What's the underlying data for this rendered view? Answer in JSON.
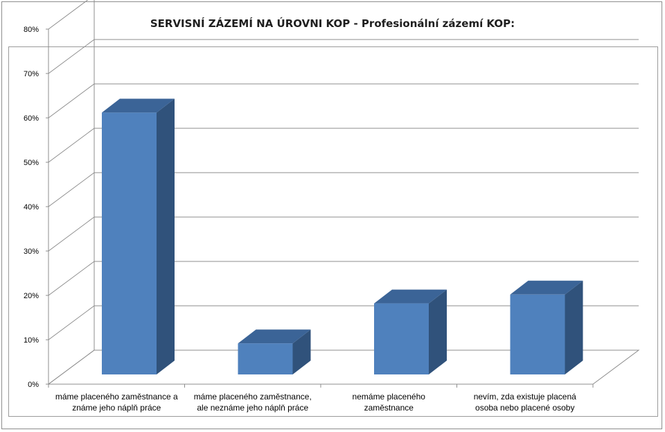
{
  "chart_data": {
    "type": "bar",
    "title": "SERVISNÍ ZÁZEMÍ NA ÚROVNI KOP - Profesionální zázemí KOP:",
    "categories": [
      [
        "máme placeného zaměstnance a",
        "známe jeho náplň práce"
      ],
      [
        "máme placeného zaměstnance,",
        "ale neznáme jeho náplň práce"
      ],
      [
        "nemáme placeného",
        "zaměstnance"
      ],
      [
        "nevím, zda existuje placená",
        "osoba nebo placené osoby"
      ]
    ],
    "values": [
      0.59,
      0.07,
      0.16,
      0.18
    ],
    "y_ticks": [
      "0%",
      "10%",
      "20%",
      "30%",
      "40%",
      "50%",
      "60%",
      "70%",
      "80%"
    ],
    "ylim": [
      0,
      0.8
    ],
    "grid": true,
    "legend": "none",
    "colors": {
      "bar_front": "#4f81bd",
      "bar_side": "#30527b",
      "bar_top": "#3b6497",
      "grid": "#8c8c8c"
    }
  }
}
